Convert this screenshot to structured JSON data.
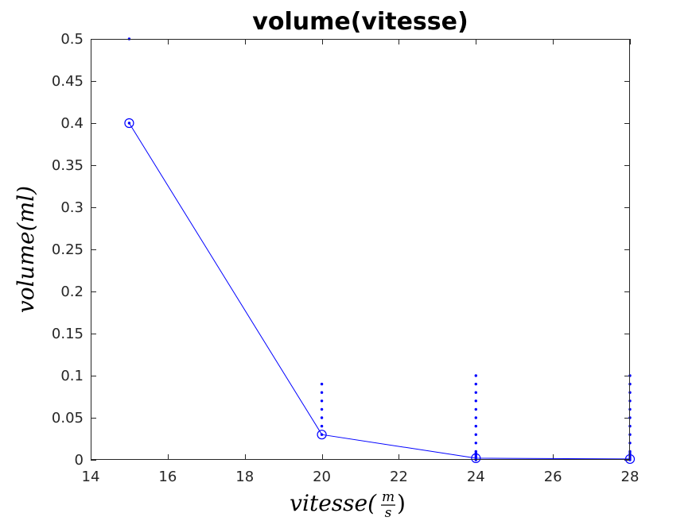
{
  "chart_data": {
    "type": "line",
    "title": "volume(vitesse)",
    "xlabel": {
      "main": "vitesse(",
      "frac_num": "m",
      "frac_den": "s",
      "close": ")"
    },
    "ylabel": "volume(ml)",
    "xlim": [
      14,
      28
    ],
    "ylim": [
      0,
      0.5
    ],
    "xticks": [
      14,
      16,
      18,
      20,
      22,
      24,
      26,
      28
    ],
    "yticks": [
      0,
      0.05,
      0.1,
      0.15,
      0.2,
      0.25,
      0.3,
      0.35,
      0.4,
      0.45,
      0.5
    ],
    "xtick_labels": [
      "14",
      "16",
      "18",
      "20",
      "22",
      "24",
      "26",
      "28"
    ],
    "ytick_labels": [
      "0",
      "0.05",
      "0.1",
      "0.15",
      "0.2",
      "0.25",
      "0.3",
      "0.35",
      "0.4",
      "0.45",
      "0.5"
    ],
    "grid": false,
    "color": "#0000ff",
    "series": [
      {
        "style": "line-with-circle-markers",
        "x": [
          15,
          20,
          24,
          28
        ],
        "y": [
          0.4,
          0.03,
          0.002,
          0.001
        ]
      },
      {
        "style": "dot-markers",
        "points": [
          [
            15,
            0.4
          ],
          [
            15,
            0.5
          ],
          [
            20,
            0.03
          ],
          [
            20,
            0.04
          ],
          [
            20,
            0.05
          ],
          [
            20,
            0.06
          ],
          [
            20,
            0.07
          ],
          [
            20,
            0.08
          ],
          [
            20,
            0.09
          ],
          [
            24,
            0.0
          ],
          [
            24,
            0.002
          ],
          [
            24,
            0.004
          ],
          [
            24,
            0.006
          ],
          [
            24,
            0.008
          ],
          [
            24,
            0.01
          ],
          [
            24,
            0.02
          ],
          [
            24,
            0.03
          ],
          [
            24,
            0.04
          ],
          [
            24,
            0.05
          ],
          [
            24,
            0.06
          ],
          [
            24,
            0.07
          ],
          [
            24,
            0.08
          ],
          [
            24,
            0.09
          ],
          [
            24,
            0.1
          ],
          [
            28,
            0.0
          ],
          [
            28,
            0.002
          ],
          [
            28,
            0.004
          ],
          [
            28,
            0.006
          ],
          [
            28,
            0.008
          ],
          [
            28,
            0.01
          ],
          [
            28,
            0.02
          ],
          [
            28,
            0.03
          ],
          [
            28,
            0.04
          ],
          [
            28,
            0.05
          ],
          [
            28,
            0.06
          ],
          [
            28,
            0.07
          ],
          [
            28,
            0.08
          ],
          [
            28,
            0.09
          ],
          [
            28,
            0.1
          ]
        ]
      }
    ]
  }
}
